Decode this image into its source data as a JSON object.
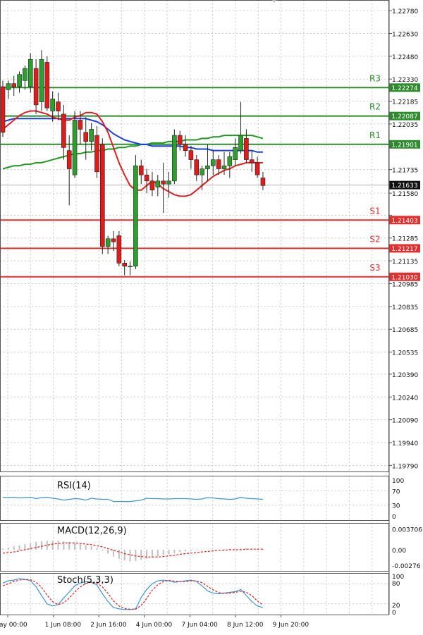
{
  "chart_data": [
    {
      "type": "candlestick",
      "ylim": [
        1.1975,
        1.2285
      ],
      "y_ticks": [
        "1.22780",
        "1.22630",
        "1.22480",
        "1.22330",
        "1.22185",
        "1.22035",
        "1.21885",
        "1.21735",
        "1.21580",
        "1.21435",
        "1.21285",
        "1.21135",
        "1.20985",
        "1.20835",
        "1.20685",
        "1.20535",
        "1.20390",
        "1.20240",
        "1.20090",
        "1.19940",
        "1.19790"
      ],
      "current_price": "1.21633",
      "levels": [
        {
          "name": "R3",
          "value": "1.22274",
          "color": "#2e8b2e"
        },
        {
          "name": "R2",
          "value": "1.22087",
          "color": "#2e8b2e"
        },
        {
          "name": "R1",
          "value": "1.21901",
          "color": "#2e8b2e"
        },
        {
          "name": "S1",
          "value": "1.21403",
          "color": "#e23030"
        },
        {
          "name": "S2",
          "value": "1.21217",
          "color": "#e23030"
        },
        {
          "name": "S3",
          "value": "1.21030",
          "color": "#e23030"
        }
      ],
      "candles": [
        [
          1.2228,
          1.2232,
          1.2195,
          1.2198
        ],
        [
          1.2226,
          1.2232,
          1.222,
          1.223
        ],
        [
          1.223,
          1.2235,
          1.2222,
          1.2228
        ],
        [
          1.2228,
          1.2238,
          1.2224,
          1.2236
        ],
        [
          1.2232,
          1.2242,
          1.2226,
          1.224
        ],
        [
          1.2228,
          1.225,
          1.2224,
          1.2246
        ],
        [
          1.224,
          1.2246,
          1.221,
          1.2216
        ],
        [
          1.2218,
          1.2252,
          1.2212,
          1.2246
        ],
        [
          1.2244,
          1.2248,
          1.2212,
          1.2214
        ],
        [
          1.2212,
          1.2225,
          1.2205,
          1.222
        ],
        [
          1.2218,
          1.2224,
          1.2206,
          1.2212
        ],
        [
          1.221,
          1.2216,
          1.218,
          1.2188
        ],
        [
          1.2186,
          1.2196,
          1.215,
          1.2174
        ],
        [
          1.217,
          1.2212,
          1.2168,
          1.2206
        ],
        [
          1.2206,
          1.2212,
          1.219,
          1.22
        ],
        [
          1.2198,
          1.2208,
          1.218,
          1.2192
        ],
        [
          1.2192,
          1.2204,
          1.2186,
          1.22
        ],
        [
          1.2196,
          1.2202,
          1.2168,
          1.2172
        ],
        [
          1.219,
          1.2194,
          1.2118,
          1.2123
        ],
        [
          1.2123,
          1.213,
          1.2118,
          1.2128
        ],
        [
          1.2128,
          1.2133,
          1.212,
          1.2126
        ],
        [
          1.213,
          1.2133,
          1.211,
          1.2112
        ],
        [
          1.2112,
          1.2114,
          1.2104,
          1.211
        ],
        [
          1.211,
          1.2113,
          1.2104,
          1.211
        ],
        [
          1.211,
          1.2183,
          1.2108,
          1.2176
        ],
        [
          1.2176,
          1.218,
          1.2164,
          1.217
        ],
        [
          1.217,
          1.2174,
          1.2158,
          1.2166
        ],
        [
          1.2166,
          1.2172,
          1.2156,
          1.216
        ],
        [
          1.2162,
          1.217,
          1.2156,
          1.2166
        ],
        [
          1.2166,
          1.2178,
          1.2145,
          1.2164
        ],
        [
          1.2164,
          1.2172,
          1.2155,
          1.2166
        ],
        [
          1.2166,
          1.22,
          1.2164,
          1.2196
        ],
        [
          1.2196,
          1.2199,
          1.2186,
          1.219
        ],
        [
          1.219,
          1.2196,
          1.2182,
          1.2186
        ],
        [
          1.2186,
          1.2189,
          1.2174,
          1.218
        ],
        [
          1.218,
          1.2183,
          1.2166,
          1.217
        ],
        [
          1.217,
          1.2176,
          1.216,
          1.2174
        ],
        [
          1.2174,
          1.219,
          1.2166,
          1.2176
        ],
        [
          1.2176,
          1.2186,
          1.217,
          1.218
        ],
        [
          1.218,
          1.2183,
          1.217,
          1.2174
        ],
        [
          1.2174,
          1.2185,
          1.217,
          1.2176
        ],
        [
          1.2176,
          1.2185,
          1.2168,
          1.2182
        ],
        [
          1.218,
          1.2194,
          1.2176,
          1.2188
        ],
        [
          1.2186,
          1.2218,
          1.2184,
          1.2196
        ],
        [
          1.2194,
          1.22,
          1.2178,
          1.218
        ],
        [
          1.218,
          1.2186,
          1.2172,
          1.2178
        ],
        [
          1.2178,
          1.2182,
          1.2168,
          1.217
        ],
        [
          1.2168,
          1.2172,
          1.216,
          1.2163
        ]
      ],
      "ma_red": [
        1.22,
        1.2203,
        1.2206,
        1.2209,
        1.2211,
        1.2212,
        1.2212,
        1.2211,
        1.221,
        1.2208,
        1.2207,
        1.2206,
        1.2206,
        1.2208,
        1.2209,
        1.2211,
        1.2211,
        1.221,
        1.2205,
        1.2198,
        1.2188,
        1.2178,
        1.217,
        1.2163,
        1.216,
        1.216,
        1.2163,
        1.2166,
        1.2164,
        1.2161,
        1.2159,
        1.2157,
        1.2156,
        1.2156,
        1.2157,
        1.216,
        1.2163,
        1.2166,
        1.2169,
        1.2171,
        1.2173,
        1.2174,
        1.2176,
        1.2177,
        1.2178,
        1.2178,
        1.2178,
        1.2178
      ],
      "ma_blue": [
        1.2205,
        1.2206,
        1.2207,
        1.2207,
        1.2207,
        1.2207,
        1.2207,
        1.2207,
        1.2207,
        1.2207,
        1.2207,
        1.2207,
        1.2207,
        1.2207,
        1.2207,
        1.2207,
        1.2206,
        1.2205,
        1.2203,
        1.22,
        1.2197,
        1.2195,
        1.2193,
        1.2192,
        1.2191,
        1.219,
        1.219,
        1.2189,
        1.2189,
        1.2189,
        1.2189,
        1.2189,
        1.2189,
        1.2188,
        1.2188,
        1.2187,
        1.2187,
        1.2187,
        1.2186,
        1.2186,
        1.2186,
        1.2186,
        1.2186,
        1.2186,
        1.2186,
        1.2186,
        1.2185,
        1.2185
      ],
      "ma_green": [
        1.2174,
        1.2175,
        1.2176,
        1.2176,
        1.2177,
        1.2177,
        1.2178,
        1.2178,
        1.2179,
        1.218,
        1.2181,
        1.2182,
        1.2183,
        1.2184,
        1.2184,
        1.2185,
        1.2185,
        1.2186,
        1.2186,
        1.2187,
        1.2187,
        1.2188,
        1.2188,
        1.2189,
        1.2189,
        1.219,
        1.219,
        1.2191,
        1.2191,
        1.2191,
        1.2192,
        1.2192,
        1.2192,
        1.2193,
        1.2193,
        1.2193,
        1.2194,
        1.2194,
        1.2195,
        1.2195,
        1.2196,
        1.2196,
        1.2196,
        1.2196,
        1.2196,
        1.2196,
        1.2195,
        1.2194
      ]
    },
    {
      "type": "line",
      "name": "RSI(14)",
      "ylim": [
        0,
        100
      ],
      "y_ticks": [
        "100",
        "70",
        "30",
        "0"
      ],
      "values": [
        52,
        51,
        52,
        50,
        51,
        52,
        48,
        51,
        52,
        49,
        47,
        44,
        46,
        48,
        47,
        44,
        49,
        47,
        46,
        46,
        40,
        40,
        40,
        40,
        42,
        44,
        49,
        48,
        48,
        47,
        47,
        48,
        48,
        48,
        47,
        46,
        47,
        51,
        50,
        48,
        47,
        46,
        47,
        52,
        49,
        48,
        47,
        46
      ]
    },
    {
      "type": "bar",
      "name": "MACD(12,26,9)",
      "ylim": [
        -0.003,
        0.004
      ],
      "y_ticks": [
        "0.003706",
        "0.00",
        "-0.00276"
      ],
      "histogram": [
        0.0002,
        0.0004,
        0.0006,
        0.0008,
        0.001,
        0.0012,
        0.0014,
        0.0015,
        0.0016,
        0.0016,
        0.0016,
        0.0015,
        0.0014,
        0.0012,
        0.001,
        0.0008,
        0.0006,
        0.0003,
        -0.0002,
        -0.0007,
        -0.0012,
        -0.0016,
        -0.0019,
        -0.0021,
        -0.002,
        -0.0018,
        -0.0016,
        -0.0014,
        -0.0012,
        -0.001,
        -0.0008,
        -0.0006,
        -0.0004,
        -0.0003,
        -0.0002,
        -0.0001,
        -0.0001,
        0.0,
        0.0,
        0.0,
        0.0001,
        0.0001,
        0.0001,
        0.0002,
        0.0002,
        0.0002,
        0.0001,
        0.0001
      ],
      "signal": [
        -0.0006,
        -0.0005,
        -0.0004,
        -0.0002,
        0.0,
        0.0002,
        0.0004,
        0.0006,
        0.0008,
        0.001,
        0.0011,
        0.0012,
        0.0012,
        0.0012,
        0.0011,
        0.001,
        0.0009,
        0.0007,
        0.0005,
        0.0002,
        -0.0001,
        -0.0004,
        -0.0007,
        -0.0009,
        -0.0011,
        -0.0012,
        -0.0013,
        -0.0013,
        -0.0013,
        -0.0012,
        -0.0011,
        -0.001,
        -0.0008,
        -0.0007,
        -0.0006,
        -0.0005,
        -0.0004,
        -0.0003,
        -0.0002,
        -0.0001,
        -0.0001,
        0.0,
        0.0,
        0.0,
        0.0001,
        0.0001,
        0.0001,
        0.0001
      ]
    },
    {
      "type": "line",
      "name": "Stoch(5,3,3)",
      "ylim": [
        0,
        100
      ],
      "y_ticks": [
        "100",
        "80",
        "20",
        "0"
      ],
      "main": [
        80,
        86,
        88,
        92,
        90,
        86,
        70,
        45,
        22,
        16,
        20,
        38,
        55,
        72,
        80,
        84,
        82,
        75,
        50,
        28,
        12,
        8,
        6,
        6,
        8,
        40,
        62,
        78,
        86,
        88,
        86,
        82,
        84,
        86,
        88,
        84,
        72,
        58,
        52,
        50,
        52,
        54,
        56,
        62,
        45,
        28,
        16,
        12
      ],
      "signal": [
        72,
        78,
        84,
        88,
        90,
        89,
        82,
        68,
        46,
        28,
        20,
        25,
        38,
        55,
        69,
        79,
        82,
        80,
        69,
        51,
        30,
        16,
        9,
        7,
        7,
        18,
        37,
        60,
        75,
        84,
        87,
        85,
        84,
        84,
        86,
        86,
        81,
        71,
        61,
        53,
        51,
        52,
        54,
        57,
        54,
        45,
        30,
        19
      ]
    }
  ],
  "time_labels": [
    "ay 00:00",
    "1 Jun 08:00",
    "2 Jun 16:00",
    "4 Jun 00:00",
    "7 Jun 04:00",
    "8 Jun 12:00",
    "9 Jun 20:00"
  ],
  "colors": {
    "up": "#2ca02c",
    "down": "#e01b1b",
    "ma_red": "#e02020",
    "ma_blue": "#1c3fe0",
    "ma_green": "#229922",
    "grid": "#c8ccd4",
    "indicator": "#3f95d6"
  }
}
